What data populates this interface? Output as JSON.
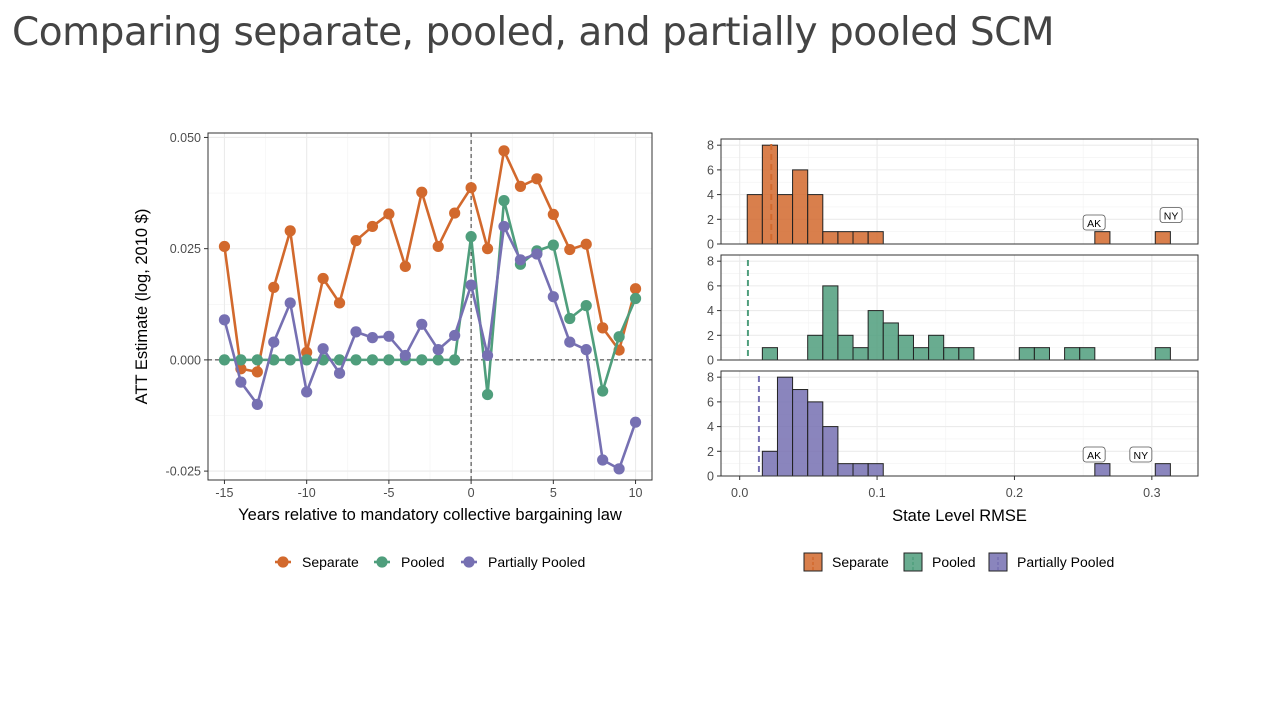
{
  "slide": {
    "title": "Comparing separate, pooled, and partially pooled SCM"
  },
  "colors": {
    "separate": "#D2692D",
    "pooled": "#4F9E7C",
    "partial": "#7670B2"
  },
  "chart_data": [
    {
      "type": "line",
      "xlabel": "Years relative to mandatory collective bargaining law",
      "ylabel": "ATT Estimate (log, 2010 $)",
      "xlim": [
        -16,
        11
      ],
      "ylim": [
        -0.027,
        0.051
      ],
      "xticks": [
        "-15",
        "-10",
        "-5",
        "0",
        "5",
        "10"
      ],
      "yticks": [
        "-0.025",
        "0.000",
        "0.025",
        "0.050"
      ],
      "reference_lines": {
        "x": 0,
        "y": 0
      },
      "grid": true,
      "legend_position": "bottom",
      "x": [
        -15,
        -14,
        -13,
        -12,
        -11,
        -10,
        -9,
        -8,
        -7,
        -6,
        -5,
        -4,
        -3,
        -2,
        -1,
        0,
        1,
        2,
        3,
        4,
        5,
        6,
        7,
        8,
        9,
        10
      ],
      "series": [
        {
          "name": "Separate",
          "color": "#D2692D",
          "values": [
            0.0255,
            -0.002,
            -0.0027,
            0.0163,
            0.029,
            0.0017,
            0.0183,
            0.0128,
            0.0268,
            0.03,
            0.0328,
            0.021,
            0.0377,
            0.0255,
            0.033,
            0.0387,
            0.025,
            0.047,
            0.039,
            0.0407,
            0.0327,
            0.0248,
            0.026,
            0.0072,
            0.0022,
            0.016
          ]
        },
        {
          "name": "Pooled",
          "color": "#4F9E7C",
          "values": [
            0,
            0,
            0,
            0,
            0,
            0,
            0,
            0,
            0,
            0,
            0,
            0,
            0,
            0,
            0,
            0.0277,
            -0.0078,
            0.0358,
            0.0215,
            0.0245,
            0.0258,
            0.0093,
            0.0122,
            -0.007,
            0.0052,
            0.0138
          ]
        },
        {
          "name": "Partially Pooled",
          "color": "#7670B2",
          "values": [
            0.009,
            -0.005,
            -0.01,
            0.004,
            0.0128,
            -0.0072,
            0.0025,
            -0.003,
            0.0063,
            0.005,
            0.0053,
            0.001,
            0.008,
            0.0023,
            0.0055,
            0.0168,
            0.001,
            0.03,
            0.0225,
            0.0238,
            0.0142,
            0.004,
            0.0023,
            -0.0225,
            -0.0245,
            -0.014
          ]
        }
      ]
    },
    {
      "type": "histogram",
      "xlabel": "State Level RMSE",
      "xlim": [
        -0.0136,
        0.3336
      ],
      "xticks": [
        "0.0",
        "0.1",
        "0.2",
        "0.3"
      ],
      "bin_width": 0.011,
      "legend_position": "bottom",
      "panels": [
        {
          "name": "Separate",
          "color": "#D2692D",
          "ylim": [
            0,
            8.5
          ],
          "yticks": [
            "0",
            "2",
            "4",
            "6",
            "8"
          ],
          "mean_line": 0.023,
          "bins": [
            {
              "x": 0.011,
              "count": 4
            },
            {
              "x": 0.022,
              "count": 8
            },
            {
              "x": 0.033,
              "count": 4
            },
            {
              "x": 0.044,
              "count": 6
            },
            {
              "x": 0.055,
              "count": 4
            },
            {
              "x": 0.066,
              "count": 1
            },
            {
              "x": 0.077,
              "count": 1
            },
            {
              "x": 0.088,
              "count": 1
            },
            {
              "x": 0.099,
              "count": 1
            },
            {
              "x": 0.264,
              "count": 1
            },
            {
              "x": 0.308,
              "count": 1
            }
          ],
          "annotations": [
            {
              "label": "AK",
              "x": 0.258,
              "y": 1.7
            },
            {
              "label": "NY",
              "x": 0.314,
              "y": 2.3
            }
          ]
        },
        {
          "name": "Pooled",
          "color": "#4F9E7C",
          "ylim": [
            0,
            8.5
          ],
          "yticks": [
            "0",
            "2",
            "4",
            "6",
            "8"
          ],
          "mean_line": 0.006,
          "bins": [
            {
              "x": 0.022,
              "count": 1
            },
            {
              "x": 0.055,
              "count": 2
            },
            {
              "x": 0.066,
              "count": 6
            },
            {
              "x": 0.077,
              "count": 2
            },
            {
              "x": 0.088,
              "count": 1
            },
            {
              "x": 0.099,
              "count": 4
            },
            {
              "x": 0.11,
              "count": 3
            },
            {
              "x": 0.121,
              "count": 2
            },
            {
              "x": 0.132,
              "count": 1
            },
            {
              "x": 0.143,
              "count": 2
            },
            {
              "x": 0.154,
              "count": 1
            },
            {
              "x": 0.165,
              "count": 1
            },
            {
              "x": 0.209,
              "count": 1
            },
            {
              "x": 0.22,
              "count": 1
            },
            {
              "x": 0.242,
              "count": 1
            },
            {
              "x": 0.253,
              "count": 1
            },
            {
              "x": 0.308,
              "count": 1
            }
          ],
          "annotations": []
        },
        {
          "name": "Partially Pooled",
          "color": "#7670B2",
          "ylim": [
            0,
            8.5
          ],
          "yticks": [
            "0",
            "2",
            "4",
            "6",
            "8"
          ],
          "mean_line": 0.014,
          "bins": [
            {
              "x": 0.022,
              "count": 2
            },
            {
              "x": 0.033,
              "count": 8
            },
            {
              "x": 0.044,
              "count": 7
            },
            {
              "x": 0.055,
              "count": 6
            },
            {
              "x": 0.066,
              "count": 4
            },
            {
              "x": 0.077,
              "count": 1
            },
            {
              "x": 0.088,
              "count": 1
            },
            {
              "x": 0.099,
              "count": 1
            },
            {
              "x": 0.264,
              "count": 1
            },
            {
              "x": 0.308,
              "count": 1
            }
          ],
          "annotations": [
            {
              "label": "AK",
              "x": 0.258,
              "y": 1.7
            },
            {
              "label": "NY",
              "x": 0.292,
              "y": 1.7
            }
          ]
        }
      ]
    }
  ]
}
